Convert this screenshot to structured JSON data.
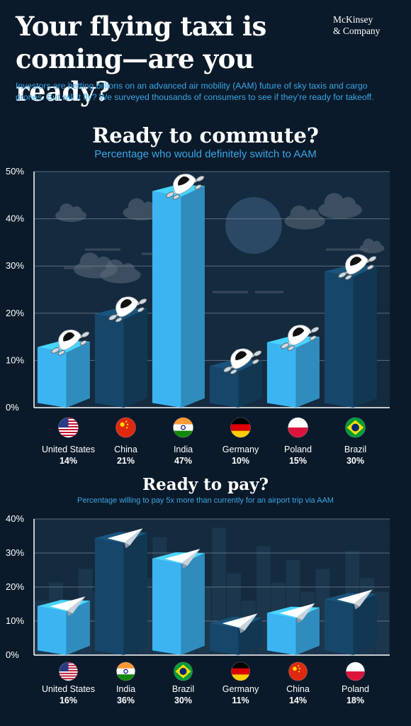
{
  "header": {
    "title": "Your flying taxi is coming—are you ready?",
    "brand_line1": "McKinsey",
    "brand_line2": "& Company",
    "intro": "Investors are betting billions on an advanced air mobility (AAM) future of sky taxis and cargo drones. But will it fly? We surveyed thousands of consumers to see if they’re ready for takeoff."
  },
  "colors": {
    "background": "#0b1a2a",
    "accent": "#3aa6e6",
    "bar_bright": "#3db4f2",
    "bar_dark": "#16476a"
  },
  "chart_data": [
    {
      "type": "bar",
      "title": "Ready to commute?",
      "subtitle": "Percentage who would definitely switch to AAM",
      "categories": [
        "United States",
        "China",
        "India",
        "Germany",
        "Poland",
        "Brazil"
      ],
      "values": [
        14,
        21,
        47,
        10,
        15,
        30
      ],
      "value_labels": [
        "14%",
        "21%",
        "47%",
        "10%",
        "15%",
        "30%"
      ],
      "flag_icons": [
        "us-flag-icon",
        "china-flag-icon",
        "india-flag-icon",
        "germany-flag-icon",
        "poland-flag-icon",
        "brazil-flag-icon"
      ],
      "bar_icon": "flying-taxi-icon",
      "ylim": [
        0,
        50
      ],
      "yticks": [
        0,
        10,
        20,
        30,
        40,
        50
      ],
      "ytick_labels": [
        "0%",
        "10%",
        "20%",
        "30%",
        "40%",
        "50%"
      ],
      "grid": true,
      "xlabel": "",
      "ylabel": ""
    },
    {
      "type": "bar",
      "title": "Ready to pay?",
      "subtitle": "Percentage willing to pay 5x more than currently for an airport trip via AAM",
      "categories": [
        "United States",
        "India",
        "Brazil",
        "Germany",
        "China",
        "Poland"
      ],
      "values": [
        16,
        36,
        30,
        11,
        14,
        18
      ],
      "value_labels": [
        "16%",
        "36%",
        "30%",
        "11%",
        "14%",
        "18%"
      ],
      "flag_icons": [
        "us-flag-icon",
        "india-flag-icon",
        "brazil-flag-icon",
        "germany-flag-icon",
        "china-flag-icon",
        "poland-flag-icon"
      ],
      "bar_icon": "paper-plane-icon",
      "ylim": [
        0,
        40
      ],
      "yticks": [
        0,
        10,
        20,
        30,
        40
      ],
      "ytick_labels": [
        "0%",
        "10%",
        "20%",
        "30%",
        "40%"
      ],
      "grid": true,
      "xlabel": "",
      "ylabel": ""
    }
  ]
}
